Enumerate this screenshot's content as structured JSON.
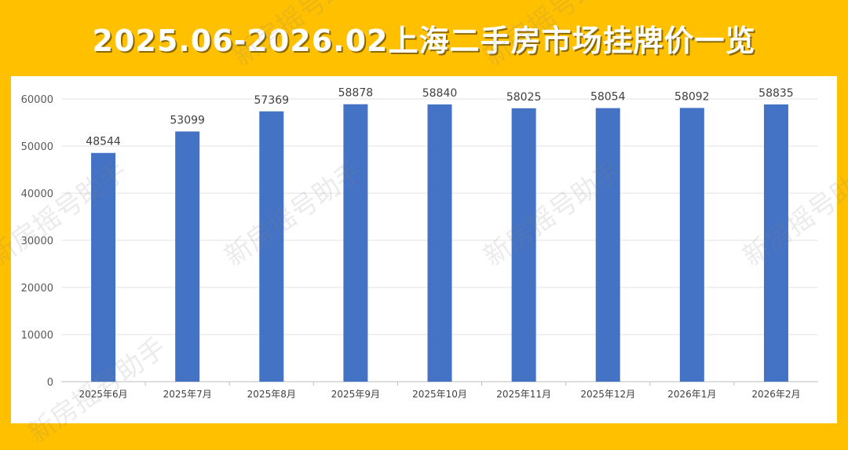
{
  "title": "2025.06-2026.02上海二手房市场挂牌价一览",
  "watermark": "新房摇号助手",
  "colors": {
    "background": "#FFC000",
    "bar": "#4472C4",
    "title_text": "#FFFFFF"
  },
  "chart_data": {
    "type": "bar",
    "title": "",
    "xlabel": "",
    "ylabel": "",
    "categories": [
      "2025年6月",
      "2025年7月",
      "2025年8月",
      "2025年9月",
      "2025年10月",
      "2025年11月",
      "2025年12月",
      "2026年1月",
      "2026年2月"
    ],
    "values": [
      48544,
      53099,
      57369,
      58878,
      58840,
      58025,
      58054,
      58092,
      58835
    ],
    "ylim": [
      0,
      60000
    ],
    "yticks": [
      0,
      10000,
      20000,
      30000,
      40000,
      50000,
      60000
    ],
    "grid": true,
    "data_labels": true,
    "legend": "none"
  }
}
